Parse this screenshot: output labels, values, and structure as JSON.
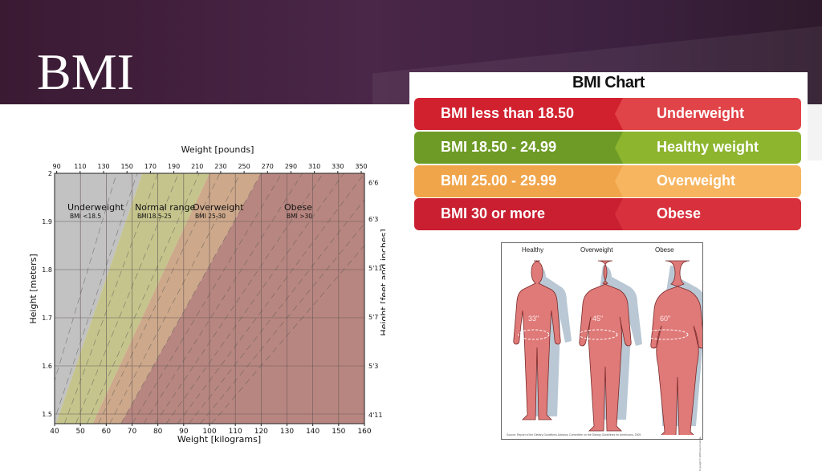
{
  "slide": {
    "title": "BMI"
  },
  "colors": {
    "header_bg": "#4a2648",
    "underweight_zone": "#c2c2c2",
    "normal_zone": "#c5c48c",
    "overweight_zone": "#cda88a",
    "obese_zone": "#b88680",
    "row_underweight": "#d1212f",
    "row_healthy": "#6d9b25",
    "row_overweight": "#f0a54b",
    "row_obese": "#c91f31",
    "figure_fill": "#df7a78"
  },
  "chart_data": {
    "type": "area",
    "title": "Weight [pounds]",
    "xlabel": "Weight [kilograms]",
    "ylabel": "Height [meters]",
    "ylabel_right": "Height [feet and inches]",
    "xlim": [
      40,
      160
    ],
    "ylim": [
      1.48,
      2.0
    ],
    "x_ticks": [
      "40",
      "50",
      "60",
      "70",
      "80",
      "90",
      "100",
      "110",
      "120",
      "130",
      "140",
      "150",
      "160"
    ],
    "y_ticks": [
      "1.5",
      "1.6",
      "1.7",
      "1.8",
      "1.9",
      "2"
    ],
    "top_ticks": [
      "90",
      "110",
      "130",
      "150",
      "170",
      "190",
      "210",
      "230",
      "250",
      "270",
      "290",
      "310",
      "330",
      "350"
    ],
    "right_ticks": [
      "4'11",
      "5'3",
      "5'7",
      "5'11",
      "6'3",
      "6'6"
    ],
    "grid": true,
    "zones": [
      {
        "name": "Underweight",
        "range": "BMI <18.5",
        "bmi_min": 0,
        "bmi_max": 18.5
      },
      {
        "name": "Normal range",
        "range": "BMI18.5-25",
        "bmi_min": 18.5,
        "bmi_max": 25
      },
      {
        "name": "Overweight",
        "range": "BMI 25-30",
        "bmi_min": 25,
        "bmi_max": 30
      },
      {
        "name": "Obese",
        "range": "BMI >30",
        "bmi_min": 30,
        "bmi_max": 1000
      }
    ]
  },
  "bmi_table": {
    "title": "BMI Chart",
    "rows": [
      {
        "range": "BMI less than 18.50",
        "category": "Underweight"
      },
      {
        "range": "BMI 18.50 - 24.99",
        "category": "Healthy weight"
      },
      {
        "range": "BMI 25.00 - 29.99",
        "category": "Overweight"
      },
      {
        "range": "BMI 30 or more",
        "category": "Obese"
      }
    ]
  },
  "figures": {
    "labels": [
      "Healthy",
      "Overweight",
      "Obese"
    ],
    "waists": [
      "33\"",
      "45\"",
      "60\""
    ],
    "source": "Source: Report of the Dietary Guidelines Advisory Committee on the Dietary Guidelines for Americans, 2005",
    "copyright": "Copyright © 2005 Heart Institute"
  }
}
